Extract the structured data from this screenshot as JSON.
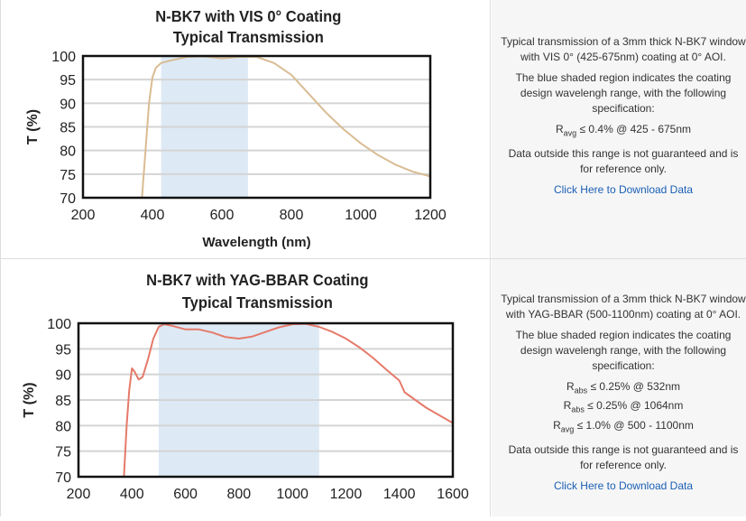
{
  "chart_data": [
    {
      "type": "line",
      "title": "N-BK7 with VIS 0° Coating",
      "subtitle": "Typical Transmission",
      "xlabel": "Wavelength (nm)",
      "ylabel": "T (%)",
      "xlim": [
        200,
        1200
      ],
      "ylim": [
        70,
        100
      ],
      "xticks": [
        200,
        400,
        600,
        800,
        1000,
        1200
      ],
      "yticks": [
        70,
        75,
        80,
        85,
        90,
        95,
        100
      ],
      "grid": true,
      "shaded_region": [
        425,
        675
      ],
      "colors": {
        "line": "#d9bc93",
        "shade": "#dde9f5"
      },
      "x": [
        370,
        380,
        390,
        400,
        410,
        425,
        450,
        500,
        550,
        600,
        650,
        700,
        750,
        800,
        850,
        900,
        950,
        1000,
        1050,
        1100,
        1150,
        1200
      ],
      "y": [
        70,
        80,
        90,
        95.5,
        97.5,
        98.5,
        99,
        99.8,
        99.9,
        99.5,
        99.8,
        99.8,
        98.5,
        96,
        92,
        88,
        84.5,
        81.5,
        79,
        77,
        75.5,
        74.5
      ]
    },
    {
      "type": "line",
      "title": "N-BK7 with YAG-BBAR Coating",
      "subtitle": "Typical Transmission",
      "xlabel": "",
      "ylabel": "T (%)",
      "xlim": [
        200,
        1600
      ],
      "ylim": [
        70,
        100
      ],
      "xticks": [
        200,
        400,
        600,
        800,
        1000,
        1200,
        1400,
        1600
      ],
      "yticks": [
        70,
        75,
        80,
        85,
        90,
        95,
        100
      ],
      "grid": true,
      "shaded_region": [
        500,
        1100
      ],
      "colors": {
        "line": "#e57a6a",
        "shade": "#dde9f5"
      },
      "x": [
        370,
        380,
        390,
        400,
        410,
        425,
        440,
        460,
        480,
        500,
        520,
        550,
        600,
        650,
        700,
        750,
        800,
        850,
        900,
        950,
        1000,
        1050,
        1100,
        1150,
        1200,
        1250,
        1300,
        1350,
        1400,
        1420,
        1500,
        1600
      ],
      "y": [
        70,
        80,
        87,
        91.2,
        90.5,
        89,
        89.5,
        93,
        97,
        99.3,
        99.8,
        99.5,
        98.8,
        98.8,
        98.2,
        97.3,
        97,
        97.4,
        98.3,
        99.2,
        99.8,
        99.9,
        99.3,
        98.3,
        97,
        95.3,
        93.3,
        91,
        88.8,
        86.5,
        83.5,
        80.5
      ]
    }
  ],
  "descriptions": [
    {
      "intro": "Typical transmission of a 3mm thick N-BK7 window with VIS 0° (425-675nm) coating at 0° AOI.",
      "shaded": "The blue shaded region indicates the coating design wavelengh range, with the following specification:",
      "specs": [
        {
          "symbol": "R",
          "sub": "avg",
          "text": " ≤ 0.4% @ 425 - 675nm"
        }
      ],
      "note": "Data outside this range is not guaranteed and is for reference only.",
      "link": "Click Here to Download Data"
    },
    {
      "intro": "Typical transmission of a 3mm thick N-BK7 window with YAG-BBAR (500-1100nm) coating at 0° AOI.",
      "shaded": "The blue shaded region indicates the coating design wavelengh range, with the following specification:",
      "specs": [
        {
          "symbol": "R",
          "sub": "abs",
          "text": " ≤ 0.25% @ 532nm"
        },
        {
          "symbol": "R",
          "sub": "abs",
          "text": " ≤ 0.25% @ 1064nm"
        },
        {
          "symbol": "R",
          "sub": "avg",
          "text": " ≤ 1.0% @ 500 - 1100nm"
        }
      ],
      "note": "Data outside this range is not guaranteed and is for reference only.",
      "link": "Click Here to Download Data"
    }
  ]
}
